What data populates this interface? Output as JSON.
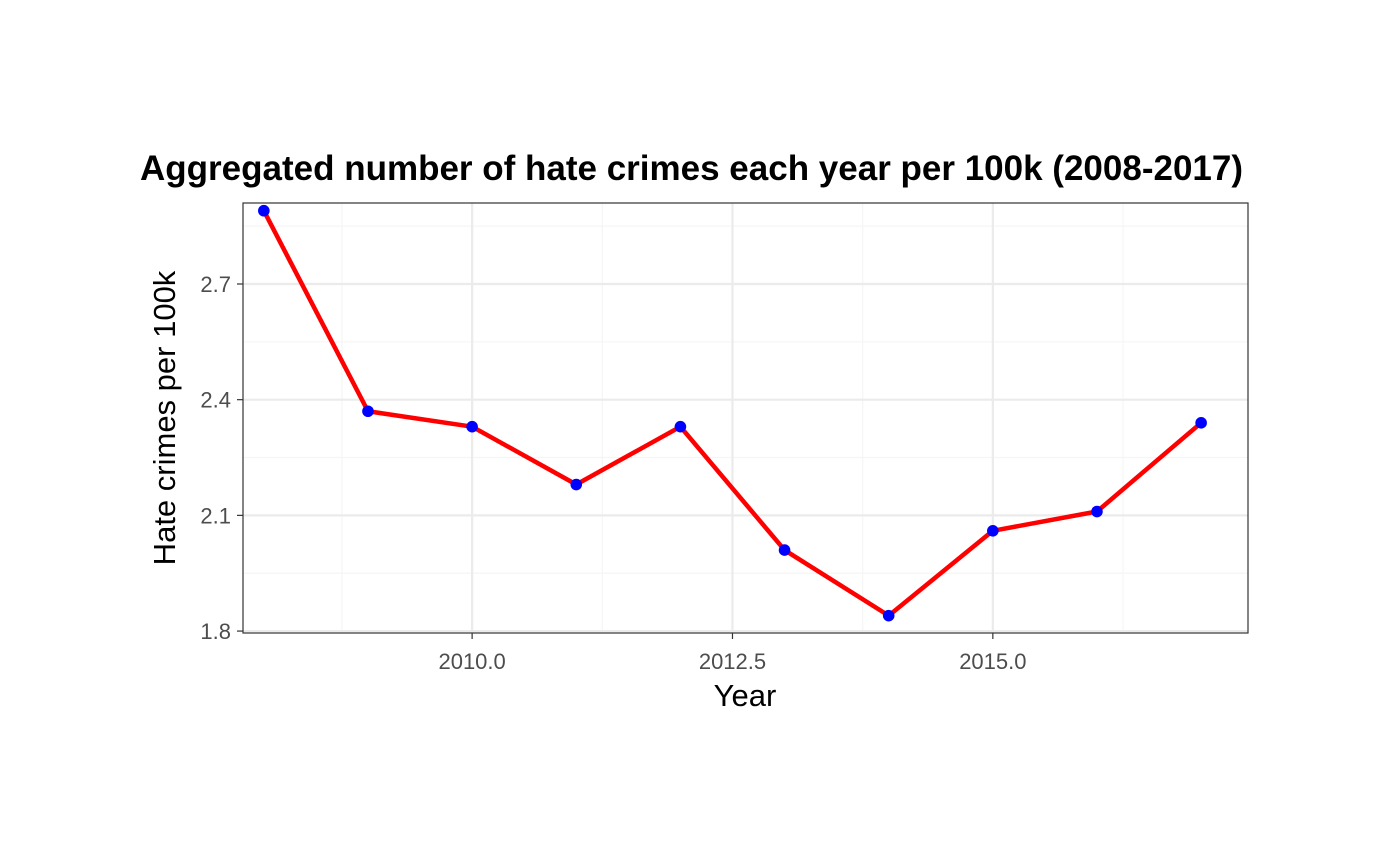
{
  "chart_data": {
    "type": "line",
    "title": "Aggregated number of hate crimes each year per 100k (2008-2017)",
    "xlabel": "Year",
    "ylabel": "Hate crimes per 100k",
    "xlim": [
      2007.8,
      2017.45
    ],
    "ylim": [
      1.795,
      2.91
    ],
    "xticks": [
      2010.0,
      2012.5,
      2015.0
    ],
    "xtick_labels": [
      "2010.0",
      "2012.5",
      "2015.0"
    ],
    "x_minor_ticks": [
      2008.75,
      2011.25,
      2013.75,
      2016.25
    ],
    "yticks": [
      1.8,
      2.1,
      2.4,
      2.7
    ],
    "ytick_labels": [
      "1.8",
      "2.1",
      "2.4",
      "2.7"
    ],
    "y_minor_ticks": [
      1.95,
      2.25,
      2.55,
      2.85
    ],
    "grid": true,
    "legend": "none",
    "series": [
      {
        "x": [
          2008,
          2009,
          2010,
          2011,
          2012,
          2013,
          2014,
          2015,
          2016,
          2017
        ],
        "y": [
          2.89,
          2.37,
          2.33,
          2.18,
          2.33,
          2.01,
          1.84,
          2.06,
          2.11,
          2.34
        ]
      }
    ],
    "colors": {
      "line": "#ff0000",
      "points": "#0000ff",
      "grid_major": "#ebebeb",
      "grid_minor": "#f5f5f5",
      "panel_border": "#333333",
      "tick_text": "#4d4d4d"
    }
  }
}
